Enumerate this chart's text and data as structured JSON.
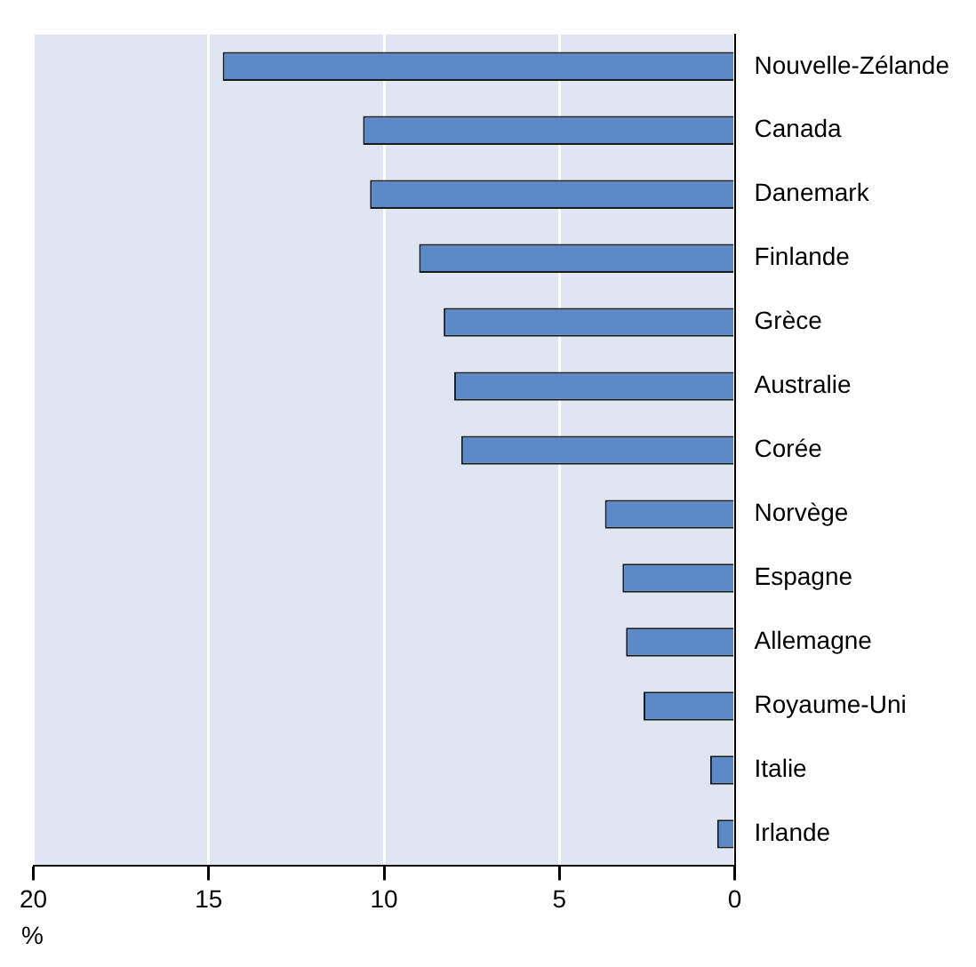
{
  "chart_data": {
    "type": "bar",
    "orientation": "horizontal",
    "xlabel": "%",
    "categories": [
      "Nouvelle-Zélande",
      "Canada",
      "Danemark",
      "Finlande",
      "Grèce",
      "Australie",
      "Corée",
      "Norvège",
      "Espagne",
      "Allemagne",
      "Royaume-Uni",
      "Italie",
      "Irlande"
    ],
    "values": [
      14.6,
      10.6,
      10.4,
      9.0,
      8.3,
      8.0,
      7.8,
      3.7,
      3.2,
      3.1,
      2.6,
      0.7,
      0.5
    ],
    "color": "#5b8ac9",
    "xlim": [
      20,
      0
    ],
    "xticks": [
      20,
      15,
      10,
      5,
      0
    ],
    "grid": "x",
    "legend": false
  }
}
